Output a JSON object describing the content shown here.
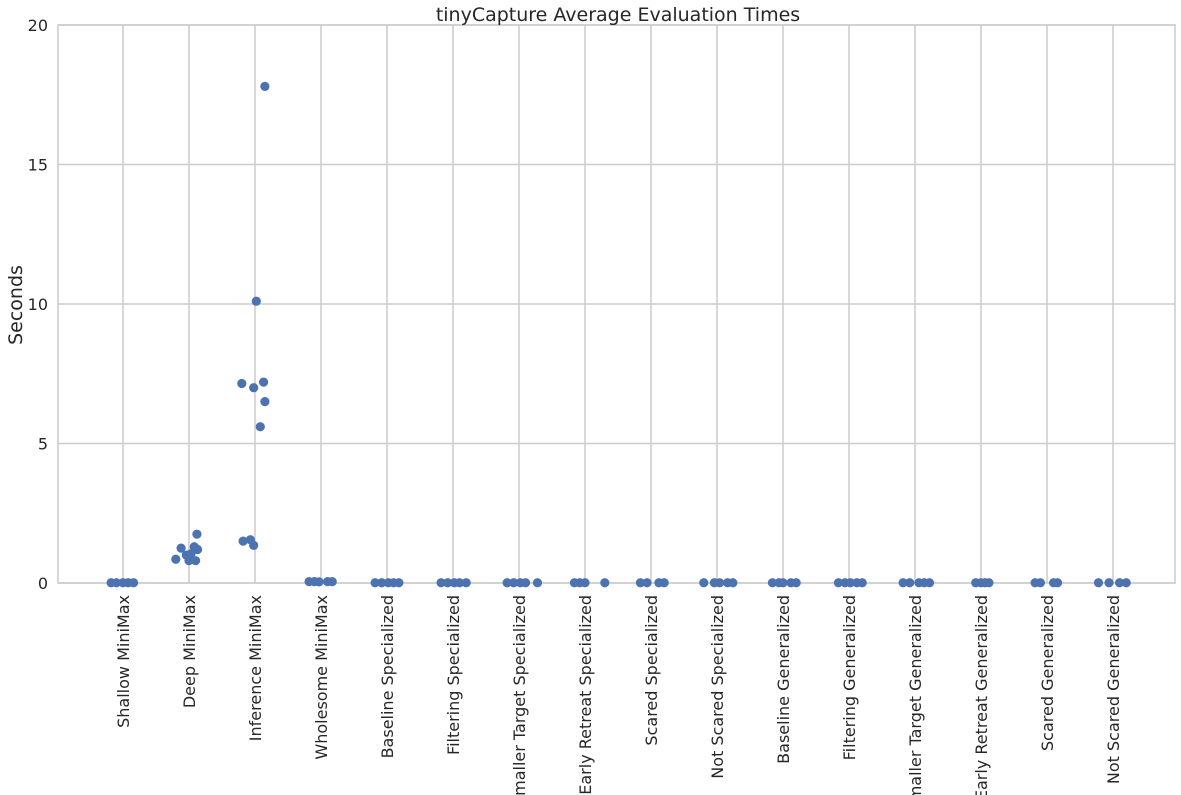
{
  "chart_data": {
    "type": "scatter",
    "title": "tinyCapture Average Evaluation Times",
    "xlabel": "",
    "ylabel": "Seconds",
    "ylim": [
      0,
      20
    ],
    "yticks": [
      "0",
      "5",
      "10",
      "15",
      "20"
    ],
    "grid": true,
    "color": "#4c72b0",
    "categories": [
      "Shallow MiniMax",
      "Deep MiniMax",
      "Inference MiniMax",
      "Wholesome MiniMax",
      "Baseline Specialized",
      "Filtering Specialized",
      "Smaller Target Specialized",
      "Early Retreat Specialized",
      "Scared Specialized",
      "Not Scared Specialized",
      "Baseline Generalized",
      "Filtering Generalized",
      "Smaller Target Generalized",
      "Early Retreat Generalized",
      "Scared Generalized",
      "Not Scared Generalized"
    ],
    "points": [
      {
        "category": "Shallow MiniMax",
        "jitter": -0.18,
        "value": 0.01
      },
      {
        "category": "Shallow MiniMax",
        "jitter": -0.1,
        "value": 0.01
      },
      {
        "category": "Shallow MiniMax",
        "jitter": 0.0,
        "value": 0.01
      },
      {
        "category": "Shallow MiniMax",
        "jitter": 0.08,
        "value": 0.01
      },
      {
        "category": "Shallow MiniMax",
        "jitter": 0.16,
        "value": 0.01
      },
      {
        "category": "Deep MiniMax",
        "jitter": -0.2,
        "value": 0.85
      },
      {
        "category": "Deep MiniMax",
        "jitter": -0.12,
        "value": 1.25
      },
      {
        "category": "Deep MiniMax",
        "jitter": -0.04,
        "value": 1.0
      },
      {
        "category": "Deep MiniMax",
        "jitter": 0.0,
        "value": 0.8
      },
      {
        "category": "Deep MiniMax",
        "jitter": 0.03,
        "value": 1.05
      },
      {
        "category": "Deep MiniMax",
        "jitter": 0.08,
        "value": 1.3
      },
      {
        "category": "Deep MiniMax",
        "jitter": 0.1,
        "value": 0.8
      },
      {
        "category": "Deep MiniMax",
        "jitter": 0.13,
        "value": 1.2
      },
      {
        "category": "Deep MiniMax",
        "jitter": 0.12,
        "value": 1.75
      },
      {
        "category": "Inference MiniMax",
        "jitter": -0.2,
        "value": 7.15
      },
      {
        "category": "Inference MiniMax",
        "jitter": -0.18,
        "value": 1.5
      },
      {
        "category": "Inference MiniMax",
        "jitter": -0.07,
        "value": 1.55
      },
      {
        "category": "Inference MiniMax",
        "jitter": -0.02,
        "value": 7.0
      },
      {
        "category": "Inference MiniMax",
        "jitter": -0.02,
        "value": 1.35
      },
      {
        "category": "Inference MiniMax",
        "jitter": 0.02,
        "value": 10.1
      },
      {
        "category": "Inference MiniMax",
        "jitter": 0.08,
        "value": 5.6
      },
      {
        "category": "Inference MiniMax",
        "jitter": 0.13,
        "value": 7.2
      },
      {
        "category": "Inference MiniMax",
        "jitter": 0.15,
        "value": 6.5
      },
      {
        "category": "Inference MiniMax",
        "jitter": 0.15,
        "value": 17.8
      },
      {
        "category": "Wholesome MiniMax",
        "jitter": -0.18,
        "value": 0.05
      },
      {
        "category": "Wholesome MiniMax",
        "jitter": -0.1,
        "value": 0.05
      },
      {
        "category": "Wholesome MiniMax",
        "jitter": -0.03,
        "value": 0.04
      },
      {
        "category": "Wholesome MiniMax",
        "jitter": 0.1,
        "value": 0.05
      },
      {
        "category": "Wholesome MiniMax",
        "jitter": 0.17,
        "value": 0.05
      },
      {
        "category": "Baseline Specialized",
        "jitter": -0.18,
        "value": 0.01
      },
      {
        "category": "Baseline Specialized",
        "jitter": -0.08,
        "value": 0.01
      },
      {
        "category": "Baseline Specialized",
        "jitter": 0.02,
        "value": 0.01
      },
      {
        "category": "Baseline Specialized",
        "jitter": 0.1,
        "value": 0.01
      },
      {
        "category": "Baseline Specialized",
        "jitter": 0.18,
        "value": 0.01
      },
      {
        "category": "Filtering Specialized",
        "jitter": -0.18,
        "value": 0.01
      },
      {
        "category": "Filtering Specialized",
        "jitter": -0.08,
        "value": 0.01
      },
      {
        "category": "Filtering Specialized",
        "jitter": 0.02,
        "value": 0.01
      },
      {
        "category": "Filtering Specialized",
        "jitter": 0.1,
        "value": 0.01
      },
      {
        "category": "Filtering Specialized",
        "jitter": 0.2,
        "value": 0.01
      },
      {
        "category": "Smaller Target Specialized",
        "jitter": -0.18,
        "value": 0.01
      },
      {
        "category": "Smaller Target Specialized",
        "jitter": -0.08,
        "value": 0.01
      },
      {
        "category": "Smaller Target Specialized",
        "jitter": 0.02,
        "value": 0.01
      },
      {
        "category": "Smaller Target Specialized",
        "jitter": 0.1,
        "value": 0.01
      },
      {
        "category": "Smaller Target Specialized",
        "jitter": 0.28,
        "value": 0.01
      },
      {
        "category": "Early Retreat Specialized",
        "jitter": -0.16,
        "value": 0.01
      },
      {
        "category": "Early Retreat Specialized",
        "jitter": -0.08,
        "value": 0.01
      },
      {
        "category": "Early Retreat Specialized",
        "jitter": 0.0,
        "value": 0.01
      },
      {
        "category": "Early Retreat Specialized",
        "jitter": 0.3,
        "value": 0.01
      },
      {
        "category": "Scared Specialized",
        "jitter": -0.16,
        "value": 0.01
      },
      {
        "category": "Scared Specialized",
        "jitter": -0.06,
        "value": 0.01
      },
      {
        "category": "Scared Specialized",
        "jitter": 0.12,
        "value": 0.01
      },
      {
        "category": "Scared Specialized",
        "jitter": 0.2,
        "value": 0.01
      },
      {
        "category": "Not Scared Specialized",
        "jitter": -0.2,
        "value": 0.01
      },
      {
        "category": "Not Scared Specialized",
        "jitter": -0.04,
        "value": 0.01
      },
      {
        "category": "Not Scared Specialized",
        "jitter": 0.04,
        "value": 0.01
      },
      {
        "category": "Not Scared Specialized",
        "jitter": 0.16,
        "value": 0.01
      },
      {
        "category": "Not Scared Specialized",
        "jitter": 0.24,
        "value": 0.01
      },
      {
        "category": "Baseline Generalized",
        "jitter": -0.16,
        "value": 0.01
      },
      {
        "category": "Baseline Generalized",
        "jitter": -0.06,
        "value": 0.01
      },
      {
        "category": "Baseline Generalized",
        "jitter": 0.0,
        "value": 0.01
      },
      {
        "category": "Baseline Generalized",
        "jitter": 0.12,
        "value": 0.01
      },
      {
        "category": "Baseline Generalized",
        "jitter": 0.2,
        "value": 0.01
      },
      {
        "category": "Filtering Generalized",
        "jitter": -0.16,
        "value": 0.01
      },
      {
        "category": "Filtering Generalized",
        "jitter": -0.06,
        "value": 0.01
      },
      {
        "category": "Filtering Generalized",
        "jitter": 0.02,
        "value": 0.01
      },
      {
        "category": "Filtering Generalized",
        "jitter": 0.12,
        "value": 0.01
      },
      {
        "category": "Filtering Generalized",
        "jitter": 0.2,
        "value": 0.01
      },
      {
        "category": "Smaller Target Generalized",
        "jitter": -0.18,
        "value": 0.01
      },
      {
        "category": "Smaller Target Generalized",
        "jitter": -0.08,
        "value": 0.01
      },
      {
        "category": "Smaller Target Generalized",
        "jitter": 0.06,
        "value": 0.01
      },
      {
        "category": "Smaller Target Generalized",
        "jitter": 0.14,
        "value": 0.01
      },
      {
        "category": "Smaller Target Generalized",
        "jitter": 0.22,
        "value": 0.01
      },
      {
        "category": "Early Retreat Generalized",
        "jitter": -0.08,
        "value": 0.01
      },
      {
        "category": "Early Retreat Generalized",
        "jitter": 0.0,
        "value": 0.01
      },
      {
        "category": "Early Retreat Generalized",
        "jitter": 0.06,
        "value": 0.01
      },
      {
        "category": "Early Retreat Generalized",
        "jitter": 0.12,
        "value": 0.01
      },
      {
        "category": "Scared Generalized",
        "jitter": -0.18,
        "value": 0.01
      },
      {
        "category": "Scared Generalized",
        "jitter": -0.1,
        "value": 0.01
      },
      {
        "category": "Scared Generalized",
        "jitter": 0.1,
        "value": 0.01
      },
      {
        "category": "Scared Generalized",
        "jitter": 0.16,
        "value": 0.01
      },
      {
        "category": "Not Scared Generalized",
        "jitter": -0.22,
        "value": 0.01
      },
      {
        "category": "Not Scared Generalized",
        "jitter": -0.06,
        "value": 0.01
      },
      {
        "category": "Not Scared Generalized",
        "jitter": 0.1,
        "value": 0.01
      },
      {
        "category": "Not Scared Generalized",
        "jitter": 0.2,
        "value": 0.01
      }
    ]
  }
}
